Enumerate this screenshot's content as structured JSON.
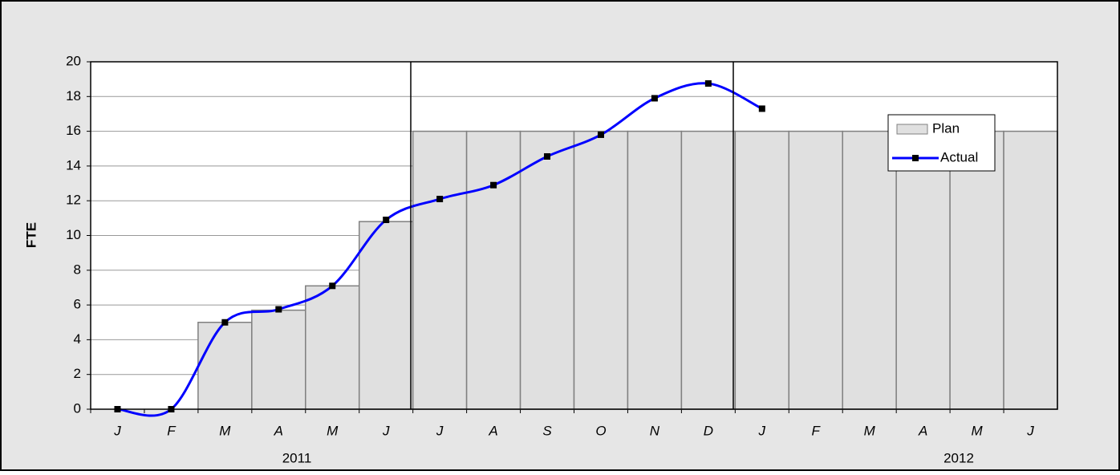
{
  "chart_data": {
    "type": "bar-line",
    "y_label": "FTE",
    "categories": [
      "J",
      "F",
      "M",
      "A",
      "M",
      "J",
      "J",
      "A",
      "S",
      "O",
      "N",
      "D",
      "J",
      "F",
      "M",
      "A",
      "M",
      "J"
    ],
    "year_labels": [
      "2011",
      "2012"
    ],
    "series": [
      {
        "name": "Plan",
        "type": "bar",
        "color": "#e0e0e0",
        "values": [
          0,
          0,
          5,
          5.7,
          7.1,
          10.8,
          16,
          16,
          16,
          16,
          16,
          16,
          16,
          16,
          16,
          16,
          16,
          16
        ]
      },
      {
        "name": "Actual",
        "type": "line",
        "color": "#0000ff",
        "values": [
          0,
          0,
          5,
          5.75,
          7.1,
          10.9,
          12.1,
          12.9,
          14.55,
          15.8,
          17.9,
          18.75,
          17.3,
          null,
          null,
          null,
          null,
          null
        ]
      }
    ],
    "ylim": [
      0,
      20
    ],
    "yticks": [
      0,
      2,
      4,
      6,
      8,
      10,
      12,
      14,
      16,
      18,
      20
    ],
    "grid": true
  }
}
